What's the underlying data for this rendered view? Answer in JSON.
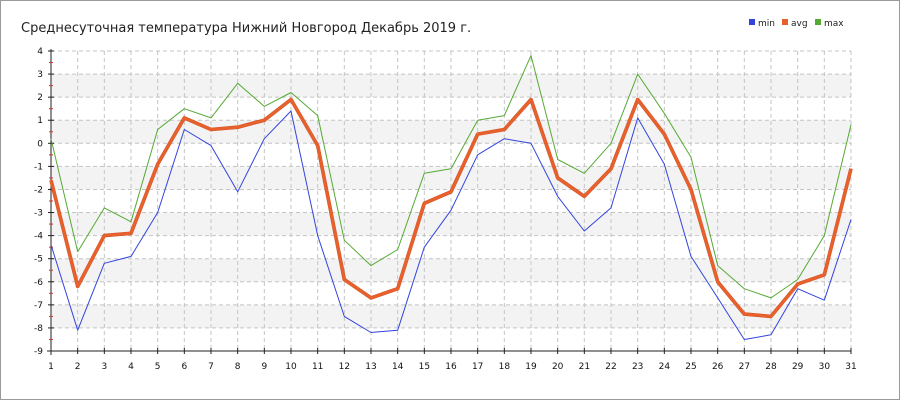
{
  "chart_data": {
    "type": "line",
    "title": "Среднесуточная температура Нижний Новгород  Декабрь 2019 г.",
    "xlabel": "",
    "ylabel": "",
    "x": [
      1,
      2,
      3,
      4,
      5,
      6,
      7,
      8,
      9,
      10,
      11,
      12,
      13,
      14,
      15,
      16,
      17,
      18,
      19,
      20,
      21,
      22,
      23,
      24,
      25,
      26,
      27,
      28,
      29,
      30,
      31
    ],
    "xlim": [
      1,
      31
    ],
    "ylim": [
      -9,
      4
    ],
    "yticks": [
      "4",
      "3",
      "2",
      "1",
      "0",
      "-1",
      "-2",
      "-3",
      "-4",
      "-5",
      "-6",
      "-7",
      "-8",
      "-9"
    ],
    "xticks": [
      "1",
      "2",
      "3",
      "4",
      "5",
      "6",
      "7",
      "8",
      "9",
      "10",
      "11",
      "12",
      "13",
      "14",
      "15",
      "16",
      "17",
      "18",
      "19",
      "20",
      "21",
      "22",
      "23",
      "24",
      "25",
      "26",
      "27",
      "28",
      "29",
      "30",
      "31"
    ],
    "grid": true,
    "legend_position": "top-right",
    "series": [
      {
        "name": "min",
        "color": "#3344dd",
        "values": [
          -4.4,
          -8.1,
          -5.2,
          -4.9,
          -3.0,
          0.6,
          -0.1,
          -2.1,
          0.2,
          1.4,
          -4.0,
          -7.5,
          -8.2,
          -8.1,
          -4.5,
          -2.9,
          -0.5,
          0.2,
          0.0,
          -2.3,
          -3.8,
          -2.8,
          1.1,
          -0.9,
          -4.9,
          -6.7,
          -8.5,
          -8.3,
          -6.3,
          -6.8,
          -3.3
        ]
      },
      {
        "name": "avg",
        "color": "#e8602c",
        "values": [
          -1.6,
          -6.2,
          -4.0,
          -3.9,
          -0.9,
          1.1,
          0.6,
          0.7,
          1.0,
          1.9,
          -0.1,
          -5.9,
          -6.7,
          -6.3,
          -2.6,
          -2.1,
          0.4,
          0.6,
          1.9,
          -1.5,
          -2.3,
          -1.1,
          1.9,
          0.4,
          -2.0,
          -6.0,
          -7.4,
          -7.5,
          -6.1,
          -5.7,
          -1.1
        ]
      },
      {
        "name": "max",
        "color": "#55aa33",
        "values": [
          0.2,
          -4.7,
          -2.8,
          -3.4,
          0.6,
          1.5,
          1.1,
          2.6,
          1.6,
          2.2,
          1.2,
          -4.2,
          -5.3,
          -4.6,
          -1.3,
          -1.1,
          1.0,
          1.2,
          3.8,
          -0.7,
          -1.3,
          0.0,
          3.0,
          1.3,
          -0.6,
          -5.3,
          -6.3,
          -6.7,
          -5.9,
          -4.0,
          0.8
        ]
      }
    ]
  }
}
